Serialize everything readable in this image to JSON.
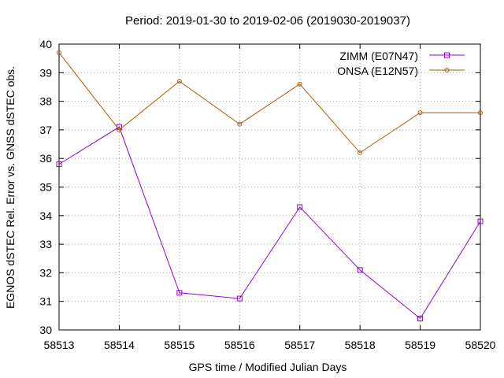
{
  "chart_data": {
    "type": "line",
    "title": "Period: 2019-01-30 to 2019-02-06 (2019030-2019037)",
    "xlabel": "GPS time / Modified Julian Days",
    "ylabel": "EGNOS dSTEC Rel. Error vs. GNSS dSTEC obs.",
    "xlim": [
      58513,
      58520
    ],
    "ylim": [
      30,
      40
    ],
    "xticks": [
      "58513",
      "58514",
      "58515",
      "58516",
      "58517",
      "58518",
      "58519",
      "58520"
    ],
    "yticks": [
      "30",
      "31",
      "32",
      "33",
      "34",
      "35",
      "36",
      "37",
      "38",
      "39",
      "40"
    ],
    "grid": true,
    "legend_position": "top-right",
    "x": [
      58513,
      58514,
      58515,
      58516,
      58517,
      58518,
      58519,
      58520
    ],
    "series": [
      {
        "name": "ZIMM (E07N47)",
        "color": "#9400d3",
        "marker": "square",
        "values": [
          35.8,
          37.1,
          31.3,
          31.1,
          34.3,
          32.1,
          30.4,
          33.8
        ]
      },
      {
        "name": "ONSA (E12N57)",
        "color": "#b35900",
        "marker": "circle",
        "values": [
          39.7,
          37.0,
          38.7,
          37.2,
          38.6,
          36.2,
          37.6,
          37.6
        ]
      }
    ]
  }
}
